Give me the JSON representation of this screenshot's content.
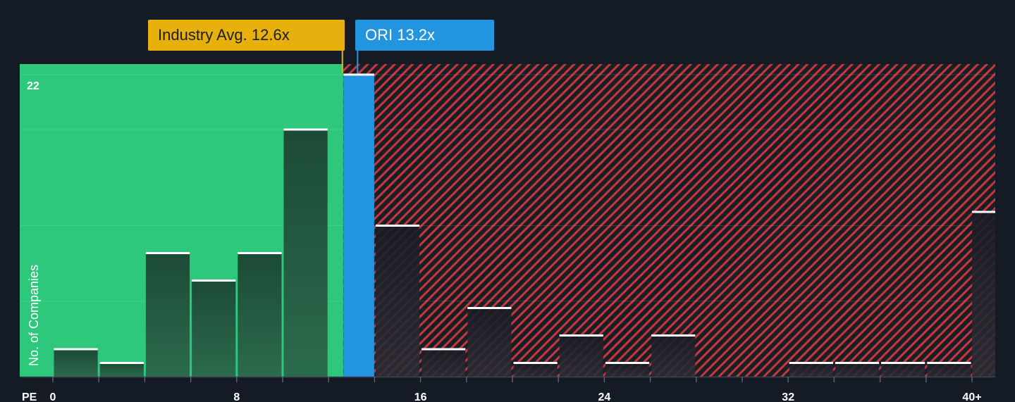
{
  "chart_data": {
    "type": "bar",
    "x_axis_name": "PE",
    "ylabel": "No. of Companies",
    "y_max_label": "22",
    "ylim": [
      0,
      22
    ],
    "xlim": [
      0,
      40.6
    ],
    "x_ticks": [
      {
        "value": 0,
        "label": "0"
      },
      {
        "value": 8,
        "label": "8"
      },
      {
        "value": 16,
        "label": "16"
      },
      {
        "value": 24,
        "label": "24"
      },
      {
        "value": 32,
        "label": "32"
      },
      {
        "value": 40,
        "label": "40+"
      }
    ],
    "bin_width": 2,
    "bins": [
      {
        "start": 0,
        "end": 2,
        "value": 2
      },
      {
        "start": 2,
        "end": 4,
        "value": 1
      },
      {
        "start": 4,
        "end": 6,
        "value": 9
      },
      {
        "start": 6,
        "end": 8,
        "value": 7
      },
      {
        "start": 8,
        "end": 10,
        "value": 9
      },
      {
        "start": 10,
        "end": 12,
        "value": 18
      },
      {
        "start": 12.6,
        "end": 13.2,
        "value": 22,
        "highlight": true
      },
      {
        "start": 14,
        "end": 16,
        "value": 11
      },
      {
        "start": 16,
        "end": 18,
        "value": 2
      },
      {
        "start": 18,
        "end": 20,
        "value": 5
      },
      {
        "start": 20,
        "end": 22,
        "value": 1
      },
      {
        "start": 22,
        "end": 24,
        "value": 3
      },
      {
        "start": 24,
        "end": 26,
        "value": 1
      },
      {
        "start": 26,
        "end": 28,
        "value": 3
      },
      {
        "start": 28,
        "end": 30,
        "value": 0
      },
      {
        "start": 30,
        "end": 32,
        "value": 0
      },
      {
        "start": 32,
        "end": 34,
        "value": 1
      },
      {
        "start": 34,
        "end": 36,
        "value": 1
      },
      {
        "start": 36,
        "end": 38,
        "value": 1
      },
      {
        "start": 38,
        "end": 40,
        "value": 1
      },
      {
        "start": 40,
        "end": 41,
        "value": 12
      }
    ],
    "industry_avg": {
      "value": 12.6,
      "label": "Industry Avg. 12.6x"
    },
    "company": {
      "name": "ORI",
      "value": 13.2,
      "label": "ORI 13.2x"
    },
    "colors": {
      "background": "#151b24",
      "fair_zone": "#2ec87c",
      "overvalued_zone": "#7c2a33",
      "hatch": "#c5383f",
      "bar_dark": "#1f4a37",
      "bar_muted": "#1b222b",
      "highlight": "#2394e0",
      "industry": "#e7b00c",
      "bar_top": "#ffffff",
      "axis_text": "#ffffff"
    }
  }
}
